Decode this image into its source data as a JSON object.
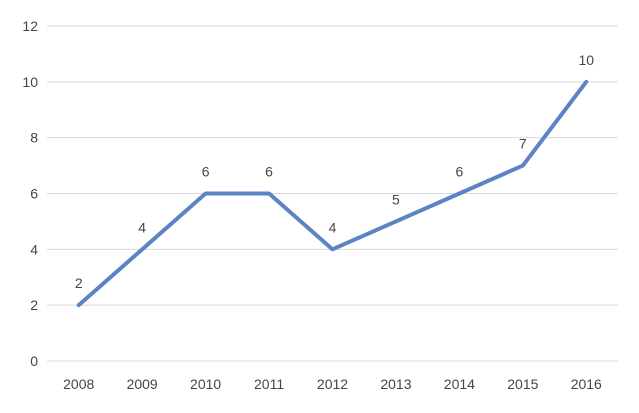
{
  "chart_data": {
    "type": "line",
    "title": "",
    "xlabel": "",
    "ylabel": "",
    "categories": [
      "2008",
      "2009",
      "2010",
      "2011",
      "2012",
      "2013",
      "2014",
      "2015",
      "2016"
    ],
    "values": [
      2,
      4,
      6,
      6,
      4,
      5,
      6,
      7,
      10
    ],
    "data_labels": [
      "2",
      "4",
      "6",
      "6",
      "4",
      "5",
      "6",
      "7",
      "10"
    ],
    "y_tick_labels": [
      "0",
      "2",
      "4",
      "6",
      "8",
      "10",
      "12"
    ],
    "ylim": [
      0,
      12
    ],
    "ytick_step": 2,
    "grid": true,
    "legend": false,
    "line_color": "#5B84C4",
    "grid_color": "#D9D9D9",
    "label_color": "#464646",
    "background_color": "#FFFFFF",
    "line_width": 4,
    "tick_font_size": 14,
    "data_label_font_size": 14
  }
}
